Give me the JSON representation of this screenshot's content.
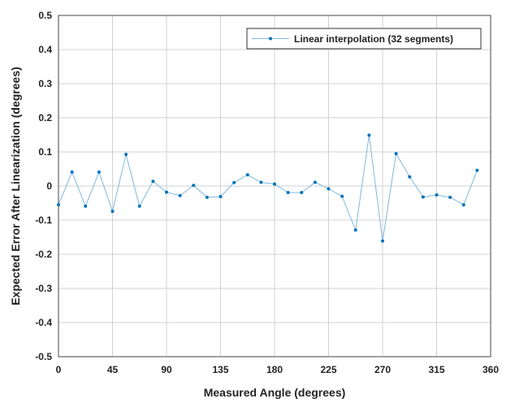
{
  "chart_data": {
    "type": "line",
    "title": "",
    "xlabel": "Measured Angle (degrees)",
    "ylabel": "Expected Error After Linearization (degrees)",
    "xlim": [
      0,
      360
    ],
    "ylim": [
      -0.5,
      0.5
    ],
    "xticks": [
      0,
      45,
      90,
      135,
      180,
      225,
      270,
      315,
      360
    ],
    "xtick_labels": [
      "0",
      "45",
      "90",
      "135",
      "180",
      "225",
      "270",
      "315",
      "360"
    ],
    "yticks": [
      0.5,
      0.4,
      0.3,
      0.2,
      0.1,
      0,
      -0.1,
      -0.2,
      -0.3,
      -0.4,
      -0.5
    ],
    "ytick_labels": [
      "0.5",
      "0.4",
      "0.3",
      "0.2",
      "0.1",
      "0",
      "-0.1",
      "-0.2",
      "-0.3",
      "-0.4",
      "-0.5"
    ],
    "grid": true,
    "legend_position": "top-right",
    "series": [
      {
        "name": "Linear interpolation (32 segments)",
        "color": "#0072BD",
        "line_color": "#7fb8e0",
        "x": [
          0,
          11.25,
          22.5,
          33.75,
          45,
          56.25,
          67.5,
          78.75,
          90,
          101.25,
          112.5,
          123.75,
          135,
          146.25,
          157.5,
          168.75,
          180,
          191.25,
          202.5,
          213.75,
          225,
          236.25,
          247.5,
          258.75,
          270,
          281.25,
          292.5,
          303.75,
          315,
          326.25,
          337.5,
          348.75
        ],
        "y": [
          -0.055,
          0.041,
          -0.059,
          0.041,
          -0.074,
          0.093,
          -0.059,
          0.014,
          -0.018,
          -0.028,
          0.002,
          -0.033,
          -0.031,
          0.01,
          0.033,
          0.011,
          0.006,
          -0.019,
          -0.019,
          0.011,
          -0.008,
          -0.03,
          -0.129,
          0.149,
          -0.161,
          0.095,
          0.027,
          -0.032,
          -0.026,
          -0.033,
          -0.055,
          0.046
        ]
      }
    ]
  }
}
